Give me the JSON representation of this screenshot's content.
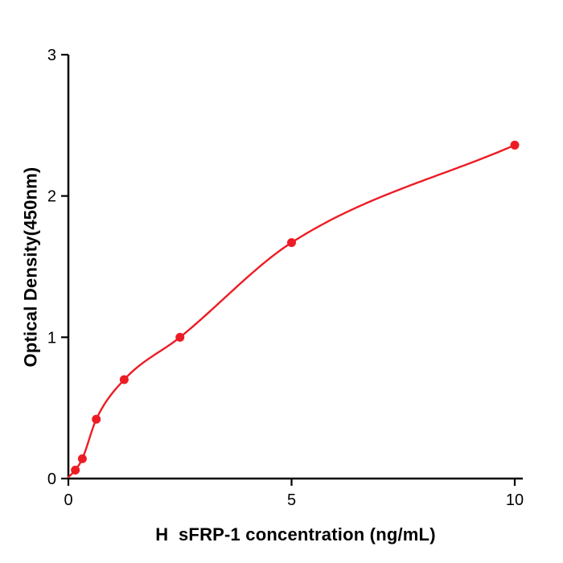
{
  "chart_data": {
    "type": "scatter",
    "title": "",
    "xlabel": "H  sFRP-1 concentration (ng/mL)",
    "ylabel": "Optical Density(450nm)",
    "x": [
      0.156,
      0.313,
      0.625,
      1.25,
      2.5,
      5,
      10
    ],
    "y": [
      0.06,
      0.14,
      0.42,
      0.7,
      1.0,
      1.67,
      2.36
    ],
    "curve": "smooth saturation fit through data points starting near origin",
    "xlim": [
      0,
      10.18
    ],
    "ylim": [
      0,
      3
    ],
    "x_ticks": [
      0,
      5,
      10
    ],
    "y_ticks": [
      0,
      1,
      2,
      3
    ],
    "grid": "off",
    "legend": "none",
    "point_color": "#ed1c24",
    "line_color": "#ed1c24",
    "axis_color": "#000000"
  }
}
